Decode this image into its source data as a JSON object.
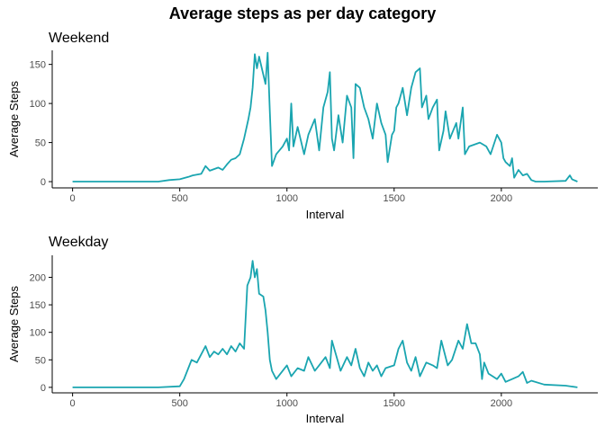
{
  "title": "Average steps as per day category",
  "colors": {
    "line": "#1aa5b0",
    "axis": "#000000",
    "tick_text": "#4d4d4d"
  },
  "chart_data": [
    {
      "type": "line",
      "title": "Weekend",
      "xlabel": "Interval",
      "ylabel": "Average Steps",
      "xlim": [
        -95,
        2450
      ],
      "ylim": [
        -8,
        168
      ],
      "x_ticks": [
        0,
        500,
        1000,
        1500,
        2000
      ],
      "y_ticks": [
        0,
        50,
        100,
        150
      ],
      "grid": false,
      "x": [
        0,
        300,
        400,
        450,
        500,
        540,
        560,
        600,
        620,
        640,
        680,
        700,
        720,
        740,
        760,
        780,
        800,
        820,
        830,
        840,
        850,
        860,
        870,
        900,
        910,
        920,
        930,
        950,
        980,
        1000,
        1010,
        1020,
        1030,
        1050,
        1080,
        1100,
        1130,
        1150,
        1170,
        1190,
        1200,
        1210,
        1220,
        1240,
        1260,
        1280,
        1300,
        1310,
        1320,
        1340,
        1360,
        1380,
        1400,
        1420,
        1440,
        1460,
        1470,
        1490,
        1500,
        1510,
        1520,
        1540,
        1560,
        1580,
        1600,
        1620,
        1630,
        1650,
        1660,
        1680,
        1700,
        1710,
        1730,
        1740,
        1760,
        1790,
        1800,
        1820,
        1830,
        1850,
        1900,
        1930,
        1950,
        1980,
        2000,
        2010,
        2020,
        2040,
        2050,
        2060,
        2080,
        2100,
        2120,
        2140,
        2160,
        2200,
        2300,
        2320,
        2330,
        2355
      ],
      "y": [
        0,
        0,
        0,
        2,
        3,
        6,
        8,
        10,
        20,
        14,
        18,
        15,
        22,
        28,
        30,
        35,
        55,
        80,
        95,
        120,
        163,
        145,
        160,
        125,
        165,
        90,
        20,
        35,
        45,
        55,
        40,
        100,
        45,
        70,
        35,
        60,
        80,
        40,
        95,
        115,
        140,
        55,
        40,
        85,
        50,
        110,
        95,
        30,
        125,
        120,
        95,
        80,
        55,
        100,
        75,
        60,
        25,
        60,
        65,
        95,
        100,
        120,
        85,
        120,
        140,
        145,
        95,
        110,
        80,
        95,
        105,
        40,
        65,
        90,
        55,
        75,
        55,
        95,
        35,
        45,
        50,
        45,
        35,
        60,
        50,
        30,
        25,
        20,
        30,
        5,
        15,
        8,
        10,
        2,
        0,
        0,
        1,
        8,
        3,
        0
      ]
    },
    {
      "type": "line",
      "title": "Weekday",
      "xlabel": "Interval",
      "ylabel": "Average Steps",
      "xlim": [
        -95,
        2450
      ],
      "ylim": [
        -10,
        240
      ],
      "x_ticks": [
        0,
        500,
        1000,
        1500,
        2000
      ],
      "y_ticks": [
        0,
        50,
        100,
        150,
        200
      ],
      "grid": false,
      "x": [
        0,
        200,
        400,
        500,
        520,
        540,
        555,
        580,
        600,
        620,
        640,
        660,
        680,
        700,
        720,
        740,
        760,
        780,
        800,
        815,
        830,
        840,
        850,
        860,
        870,
        890,
        900,
        910,
        920,
        930,
        950,
        1000,
        1020,
        1050,
        1080,
        1100,
        1130,
        1150,
        1180,
        1200,
        1210,
        1250,
        1280,
        1300,
        1320,
        1340,
        1360,
        1380,
        1400,
        1420,
        1440,
        1460,
        1500,
        1520,
        1540,
        1560,
        1580,
        1600,
        1620,
        1650,
        1680,
        1700,
        1720,
        1750,
        1770,
        1800,
        1820,
        1840,
        1860,
        1880,
        1900,
        1910,
        1920,
        1940,
        1960,
        1980,
        2000,
        2020,
        2050,
        2080,
        2100,
        2120,
        2140,
        2200,
        2300,
        2355
      ],
      "y": [
        0,
        0,
        0,
        2,
        15,
        35,
        50,
        45,
        60,
        75,
        55,
        65,
        60,
        70,
        60,
        75,
        65,
        80,
        70,
        185,
        200,
        230,
        200,
        215,
        170,
        165,
        140,
        100,
        50,
        30,
        15,
        40,
        20,
        35,
        30,
        55,
        30,
        40,
        55,
        35,
        85,
        30,
        55,
        40,
        70,
        35,
        20,
        45,
        30,
        40,
        20,
        35,
        40,
        70,
        85,
        45,
        30,
        55,
        20,
        45,
        40,
        35,
        85,
        40,
        50,
        85,
        70,
        115,
        80,
        80,
        60,
        15,
        45,
        25,
        20,
        15,
        25,
        10,
        15,
        20,
        28,
        8,
        12,
        5,
        3,
        0
      ]
    }
  ]
}
